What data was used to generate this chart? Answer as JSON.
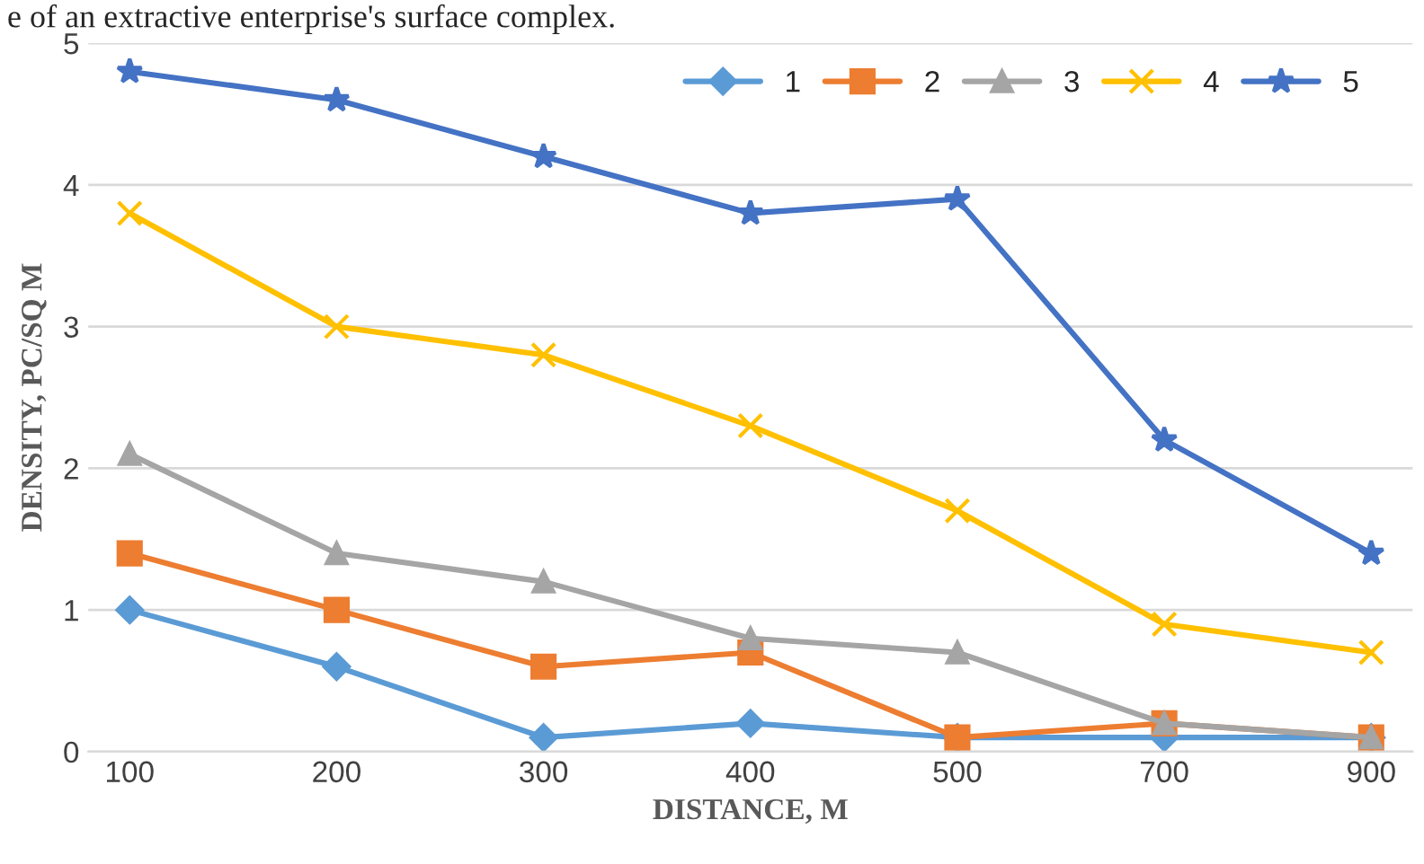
{
  "chart_data": {
    "type": "line",
    "xlabel": "DISTANCE, M",
    "ylabel": "DENSITY, PC/SQ M",
    "annotations": [
      "e of an extractive enterprise's surface complex."
    ],
    "categories": [
      "100",
      "200",
      "300",
      "400",
      "500",
      "700",
      "900"
    ],
    "ylim": [
      0,
      5
    ],
    "yticks": [
      0,
      1,
      2,
      3,
      4,
      5
    ],
    "grid": "y",
    "legend": "top right",
    "series": [
      {
        "name": "1",
        "color": "#5b9bd5",
        "marker": "diamond",
        "values": [
          1.0,
          0.6,
          0.1,
          0.2,
          0.1,
          0.1,
          0.1
        ]
      },
      {
        "name": "2",
        "color": "#ed7d31",
        "marker": "square",
        "values": [
          1.4,
          1.0,
          0.6,
          0.7,
          0.1,
          0.2,
          0.1
        ]
      },
      {
        "name": "3",
        "color": "#a5a5a5",
        "marker": "triangle",
        "values": [
          2.1,
          1.4,
          1.2,
          0.8,
          0.7,
          0.2,
          0.1
        ]
      },
      {
        "name": "4",
        "color": "#ffc000",
        "marker": "cross",
        "values": [
          3.8,
          3.0,
          2.8,
          2.3,
          1.7,
          0.9,
          0.7
        ]
      },
      {
        "name": "5",
        "color": "#4472c4",
        "marker": "star",
        "values": [
          4.8,
          4.6,
          4.2,
          3.8,
          3.9,
          2.2,
          1.4
        ]
      }
    ]
  }
}
